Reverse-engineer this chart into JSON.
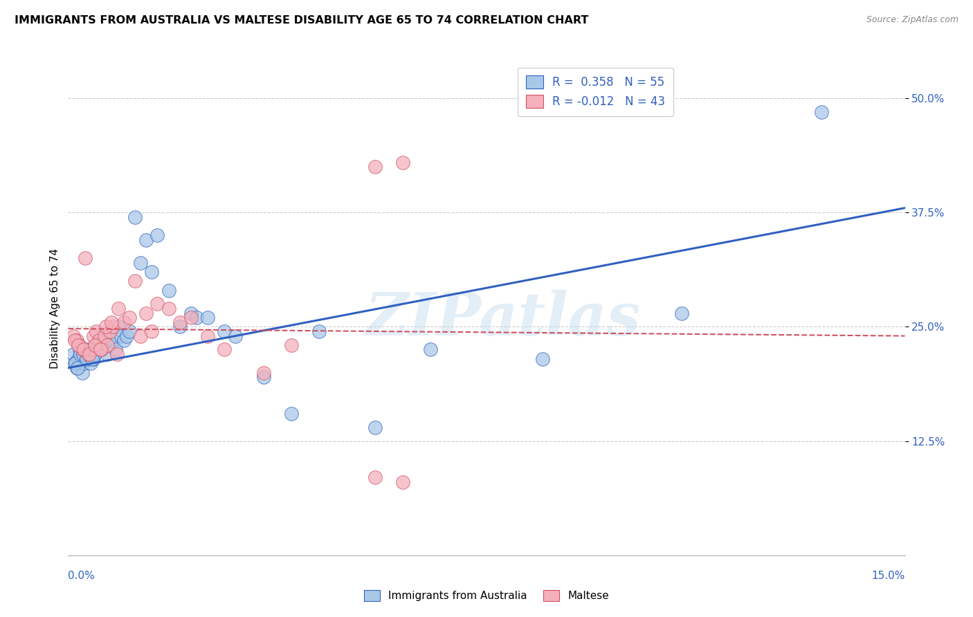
{
  "title": "IMMIGRANTS FROM AUSTRALIA VS MALTESE DISABILITY AGE 65 TO 74 CORRELATION CHART",
  "source": "Source: ZipAtlas.com",
  "xlabel_bottom_left": "0.0%",
  "xlabel_bottom_right": "15.0%",
  "ylabel": "Disability Age 65 to 74",
  "yticks": [
    12.5,
    25.0,
    37.5,
    50.0
  ],
  "ytick_labels": [
    "12.5%",
    "25.0%",
    "37.5%",
    "50.0%"
  ],
  "xmin": 0.0,
  "xmax": 15.0,
  "ymin": 0.0,
  "ymax": 54.0,
  "legend1_R": "0.358",
  "legend1_N": "55",
  "legend2_R": "-0.012",
  "legend2_N": "43",
  "legend_label1": "Immigrants from Australia",
  "legend_label2": "Maltese",
  "blue_color": "#a8c8e8",
  "pink_color": "#f4b0bc",
  "blue_line_color": "#3060c0",
  "pink_line_color": "#d05060",
  "watermark": "ZIPatlas",
  "blue_scatter_x": [
    0.1,
    0.12,
    0.15,
    0.18,
    0.2,
    0.22,
    0.25,
    0.28,
    0.3,
    0.32,
    0.35,
    0.38,
    0.4,
    0.42,
    0.45,
    0.48,
    0.5,
    0.55,
    0.6,
    0.65,
    0.7,
    0.75,
    0.8,
    0.85,
    0.9,
    0.95,
    1.0,
    1.05,
    1.1,
    1.2,
    1.3,
    1.4,
    1.5,
    1.6,
    1.8,
    2.0,
    2.2,
    2.3,
    2.5,
    2.8,
    3.0,
    3.5,
    4.0,
    4.5,
    5.5,
    6.5,
    8.5,
    11.0,
    13.5,
    0.13,
    0.17,
    0.22,
    0.27,
    0.33,
    0.43
  ],
  "blue_scatter_y": [
    22.0,
    21.0,
    20.5,
    21.5,
    22.5,
    21.0,
    20.0,
    21.0,
    22.0,
    21.5,
    22.5,
    22.0,
    21.0,
    22.0,
    21.5,
    22.0,
    23.0,
    22.5,
    24.0,
    23.5,
    22.0,
    23.0,
    23.5,
    22.5,
    25.0,
    24.0,
    23.5,
    24.0,
    24.5,
    37.0,
    32.0,
    34.5,
    31.0,
    35.0,
    29.0,
    25.0,
    26.5,
    26.0,
    26.0,
    24.5,
    24.0,
    19.5,
    15.5,
    24.5,
    14.0,
    22.5,
    21.5,
    26.5,
    48.5,
    21.0,
    20.5,
    22.0,
    22.0,
    21.5,
    21.5
  ],
  "pink_scatter_x": [
    0.1,
    0.15,
    0.2,
    0.25,
    0.3,
    0.35,
    0.4,
    0.45,
    0.5,
    0.55,
    0.6,
    0.65,
    0.7,
    0.75,
    0.8,
    0.9,
    1.0,
    1.1,
    1.2,
    1.4,
    1.6,
    1.8,
    2.0,
    2.2,
    2.5,
    2.8,
    3.5,
    4.0,
    5.5,
    6.0,
    0.12,
    0.18,
    0.28,
    0.38,
    0.48,
    0.58,
    0.68,
    0.78,
    0.88,
    1.3,
    1.5,
    5.5,
    6.0
  ],
  "pink_scatter_y": [
    24.0,
    23.5,
    23.0,
    22.5,
    32.5,
    22.0,
    22.5,
    24.0,
    24.5,
    23.5,
    22.5,
    24.0,
    23.0,
    24.5,
    25.0,
    27.0,
    25.5,
    26.0,
    30.0,
    26.5,
    27.5,
    27.0,
    25.5,
    26.0,
    24.0,
    22.5,
    20.0,
    23.0,
    8.5,
    8.0,
    23.5,
    23.0,
    22.5,
    22.0,
    23.0,
    22.5,
    25.0,
    25.5,
    22.0,
    24.0,
    24.5,
    42.5,
    43.0
  ],
  "blue_line_x0": 0.0,
  "blue_line_x1": 15.0,
  "blue_line_y0": 20.5,
  "blue_line_y1": 38.0,
  "pink_line_x0": 0.0,
  "pink_line_x1": 15.0,
  "pink_line_y0": 24.8,
  "pink_line_y1": 24.0
}
